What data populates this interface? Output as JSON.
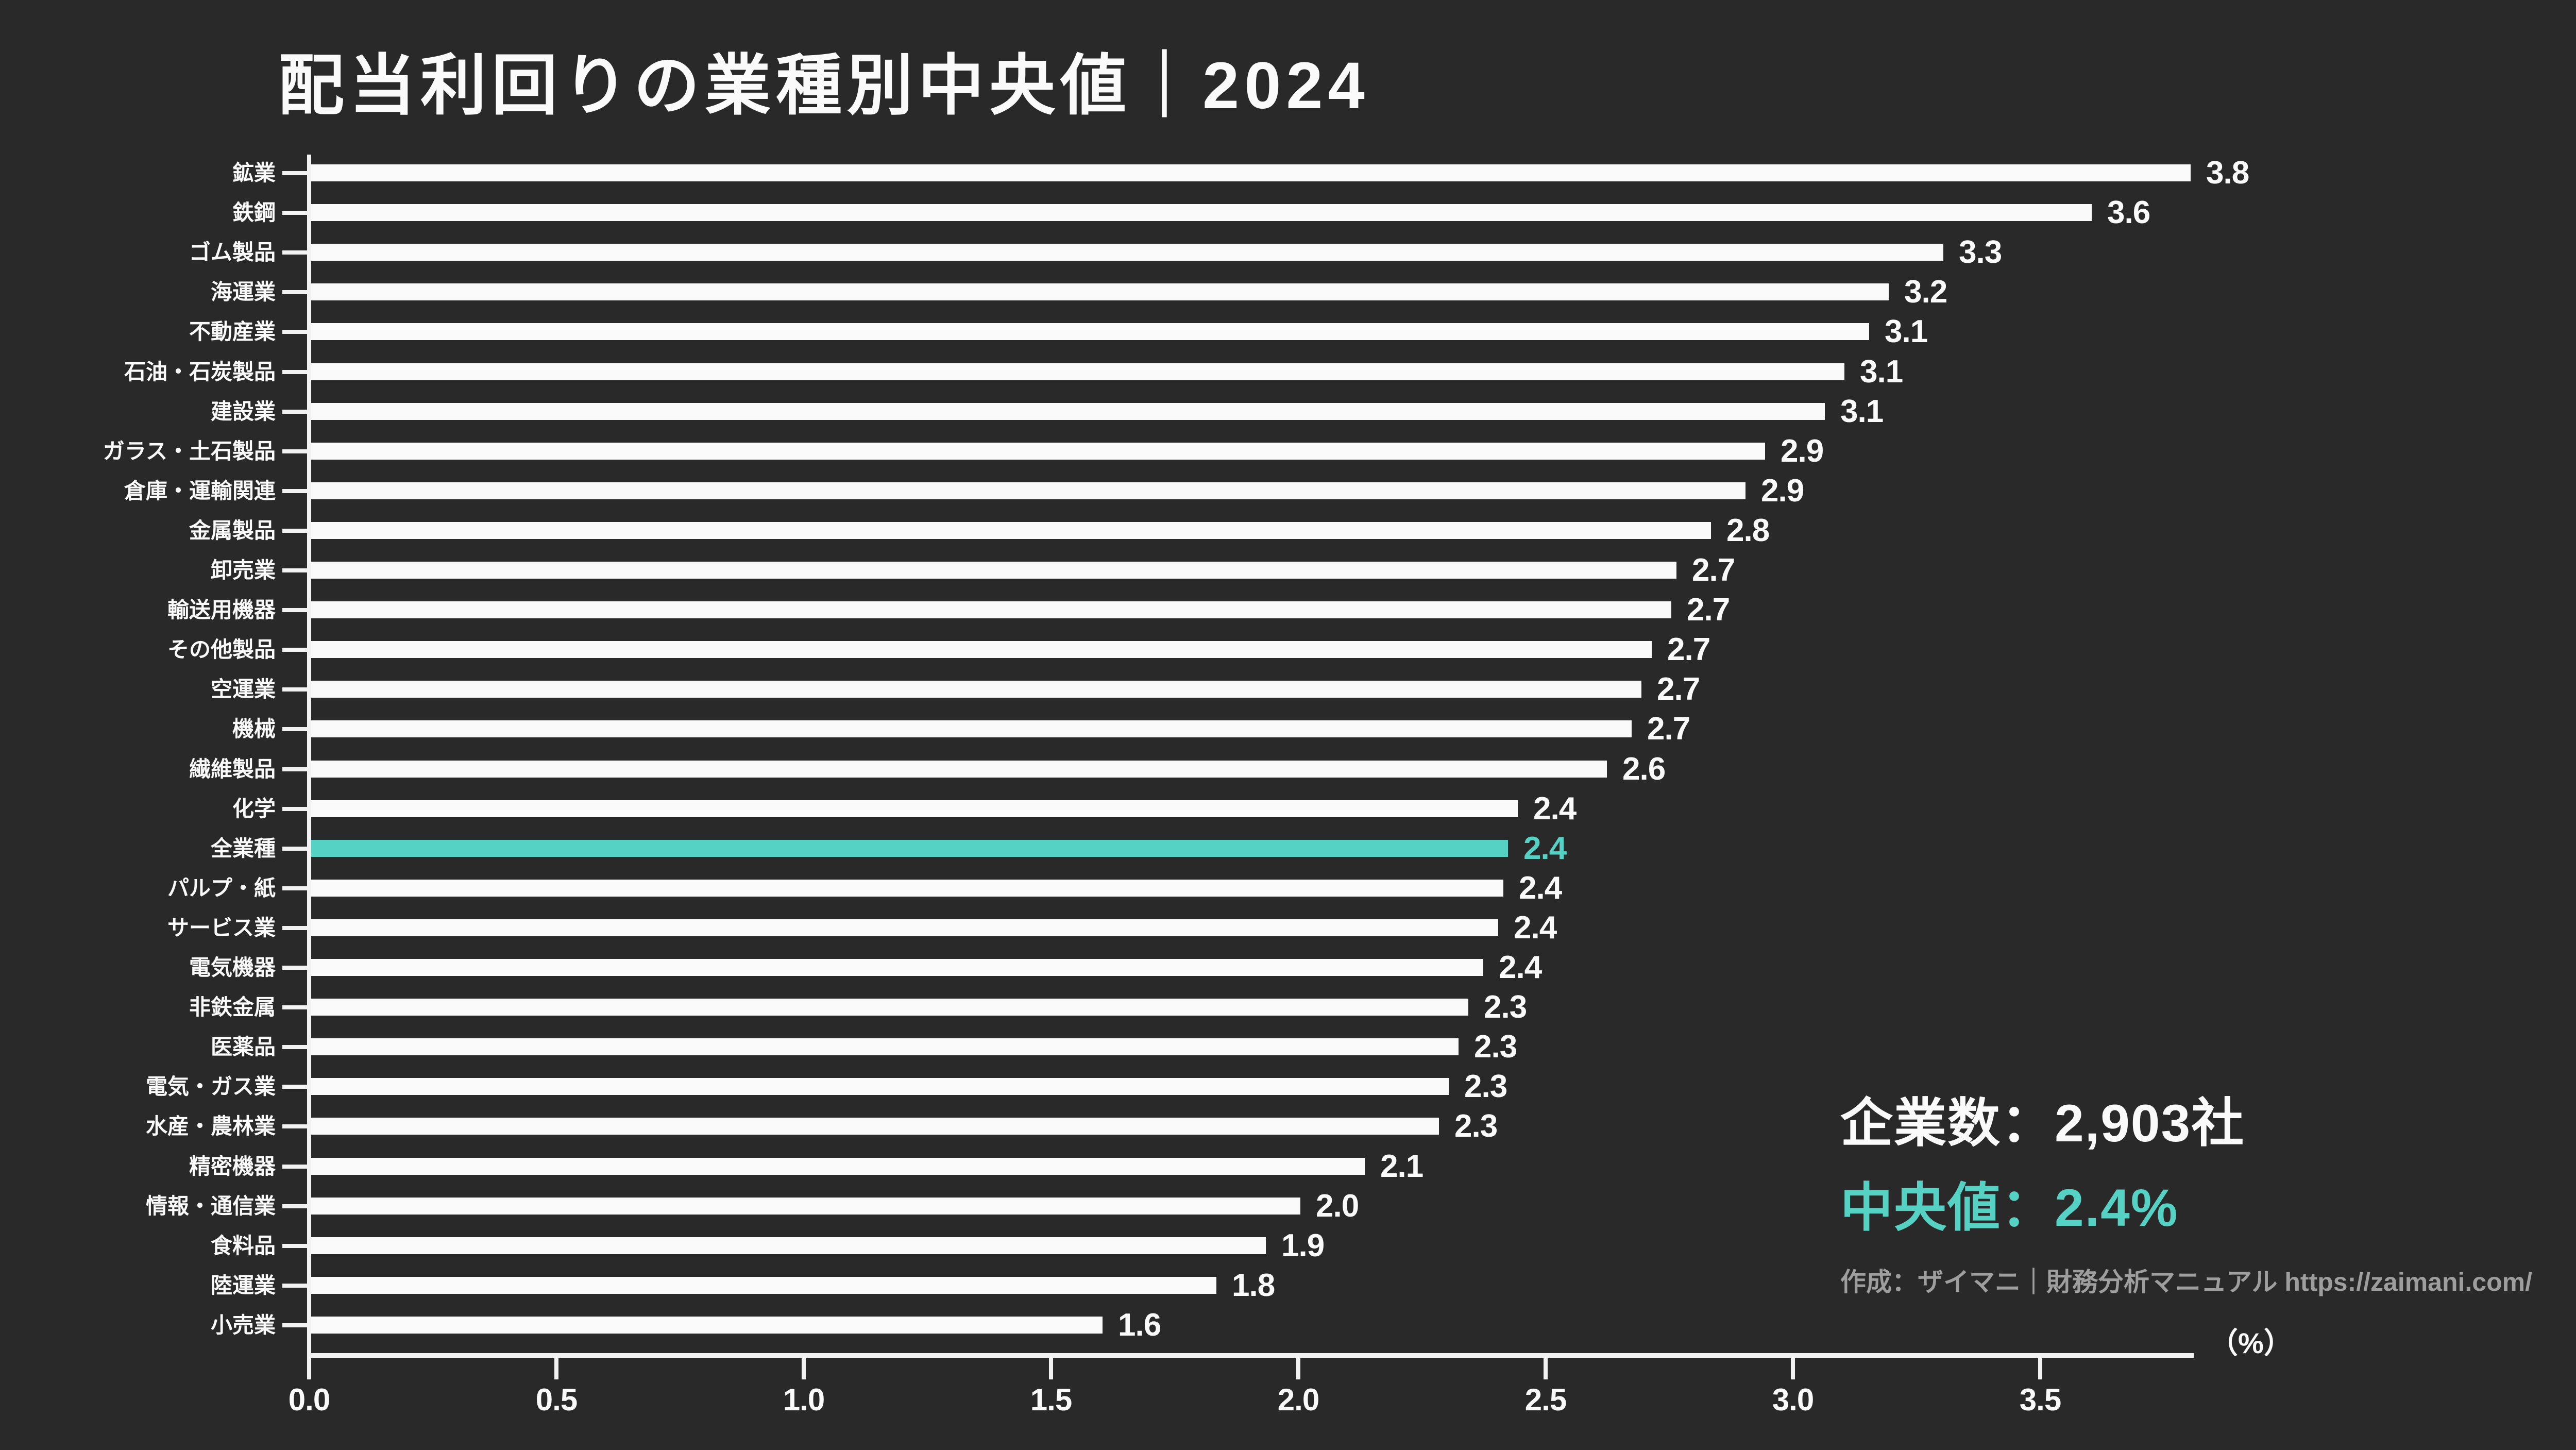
{
  "title": "配当利回りの業種別中央値｜2024",
  "chart_data": {
    "type": "bar",
    "orientation": "horizontal",
    "title": "配当利回りの業種別中央値｜2024",
    "categories": [
      "鉱業",
      "鉄鋼",
      "ゴム製品",
      "海運業",
      "不動産業",
      "石油・石炭製品",
      "建設業",
      "ガラス・土石製品",
      "倉庫・運輸関連",
      "金属製品",
      "卸売業",
      "輸送用機器",
      "その他製品",
      "空運業",
      "機械",
      "繊維製品",
      "化学",
      "全業種",
      "パルプ・紙",
      "サービス業",
      "電気機器",
      "非鉄金属",
      "医薬品",
      "電気・ガス業",
      "水産・農林業",
      "精密機器",
      "情報・通信業",
      "食料品",
      "陸運業",
      "小売業"
    ],
    "values": [
      3.8,
      3.6,
      3.3,
      3.2,
      3.1,
      3.1,
      3.1,
      2.9,
      2.9,
      2.8,
      2.7,
      2.7,
      2.7,
      2.7,
      2.7,
      2.6,
      2.4,
      2.4,
      2.4,
      2.4,
      2.4,
      2.3,
      2.3,
      2.3,
      2.3,
      2.1,
      2.0,
      1.9,
      1.8,
      1.6
    ],
    "value_labels": [
      "3.8",
      "3.6",
      "3.3",
      "3.2",
      "3.1",
      "3.1",
      "3.1",
      "2.9",
      "2.9",
      "2.8",
      "2.7",
      "2.7",
      "2.7",
      "2.7",
      "2.7",
      "2.6",
      "2.4",
      "2.4",
      "2.4",
      "2.4",
      "2.4",
      "2.3",
      "2.3",
      "2.3",
      "2.3",
      "2.1",
      "2.0",
      "1.9",
      "1.8",
      "1.6"
    ],
    "values_precise": [
      3.8,
      3.6,
      3.3,
      3.19,
      3.15,
      3.1,
      3.06,
      2.94,
      2.9,
      2.83,
      2.76,
      2.75,
      2.71,
      2.69,
      2.67,
      2.62,
      2.44,
      2.42,
      2.41,
      2.4,
      2.37,
      2.34,
      2.32,
      2.3,
      2.28,
      2.13,
      2.0,
      1.93,
      1.83,
      1.6
    ],
    "highlight_category": "全業種",
    "highlight_value_label": "2.4",
    "x_tick_labels": [
      "0.0",
      "0.5",
      "1.0",
      "1.5",
      "2.0",
      "2.5",
      "3.0",
      "3.5"
    ],
    "xlim": [
      0,
      3.8
    ],
    "x_unit_label": "（%）",
    "grid": false,
    "legend": false
  },
  "stats": {
    "companies_line": "企業数：2,903社",
    "median_line": "中央値：2.4%",
    "attribution": "作成：ザイマニ｜財務分析マニュアル https://zaimani.com/"
  },
  "colors": {
    "background": "#292929",
    "bar": "#fafafa",
    "highlight": "#56d2c5",
    "axis": "#f2f2f2",
    "text": "#fafafa",
    "muted_text": "#9e9e9e"
  }
}
